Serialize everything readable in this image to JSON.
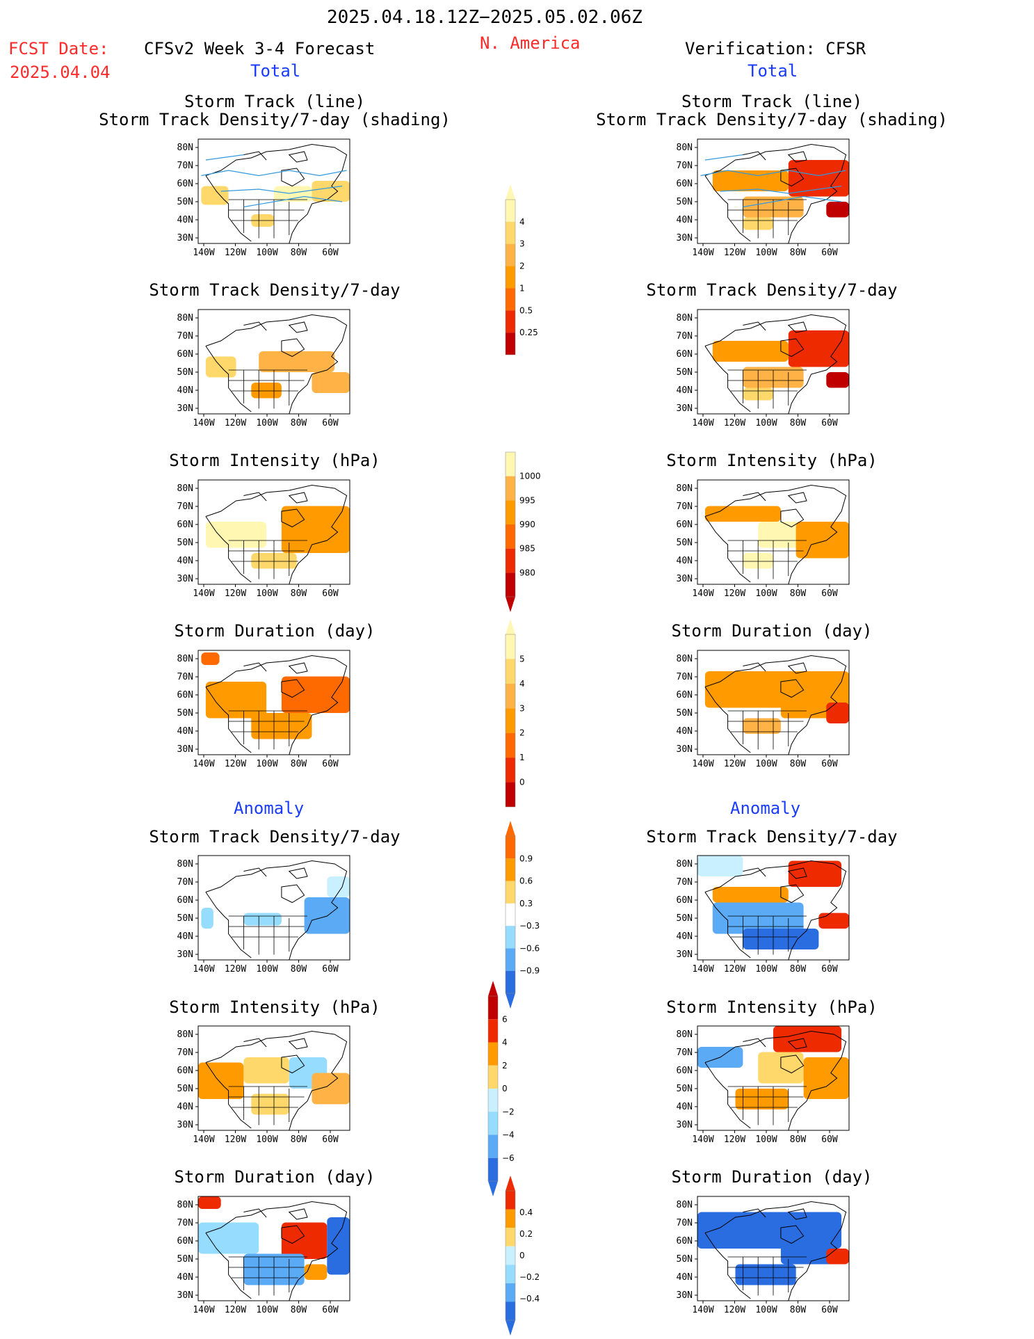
{
  "header": {
    "period": "2025.04.18.12Z−2025.05.02.06Z",
    "fcst_label": "FCST Date:",
    "fcst_date": "2025.04.04",
    "model": "CFSv2 Week 3-4 Forecast",
    "region": "N. America",
    "verification": "Verification: CFSR",
    "total_left": "Total",
    "total_right": "Total",
    "anomaly_left": "Anomaly",
    "anomaly_right": "Anomaly"
  },
  "axes": {
    "lat_labels": [
      "80N",
      "70N",
      "60N",
      "50N",
      "40N",
      "30N"
    ],
    "lon_labels": [
      "140W",
      "120W",
      "100W",
      "80W",
      "60W"
    ]
  },
  "panel_titles": {
    "track_line": "Storm Track (line)",
    "track_shading": "Storm Track Density/7-day (shading)",
    "density": "Storm Track Density/7-day",
    "intensity": "Storm Intensity (hPa)",
    "duration": "Storm Duration (day)"
  },
  "colors": {
    "yellow_light": "#fff7b2",
    "yellow": "#ffd86b",
    "orange_light": "#ffb347",
    "orange": "#ff9a00",
    "orange_dark": "#ff6a00",
    "red": "#ee2a00",
    "red_dark": "#c00000",
    "cyan_light": "#c8f0ff",
    "cyan": "#96dcff",
    "blue_light": "#5aaaf5",
    "blue": "#2a6de0",
    "blue_dark": "#1a4fc8",
    "track_line": "#3399dd",
    "title_blue": "#1a3cff",
    "title_red": "#ff2a2a"
  },
  "colorbars": [
    {
      "name": "density-total",
      "ticks": [
        "4",
        "3",
        "2",
        "1",
        "0.5",
        "0.25"
      ]
    },
    {
      "name": "intensity-total",
      "ticks": [
        "1000",
        "995",
        "990",
        "985",
        "980"
      ]
    },
    {
      "name": "duration-total",
      "ticks": [
        "5",
        "4",
        "3",
        "2",
        "1",
        "0"
      ]
    },
    {
      "name": "density-anomaly",
      "ticks": [
        "0.9",
        "0.6",
        "0.3",
        "−0.3",
        "−0.6",
        "−0.9"
      ]
    },
    {
      "name": "intensity-anomaly",
      "ticks": [
        "6",
        "4",
        "2",
        "0",
        "−2",
        "−4",
        "−6"
      ]
    },
    {
      "name": "duration-anomaly",
      "ticks": [
        "0.4",
        "0.2",
        "0",
        "−0.2",
        "−0.4"
      ]
    }
  ]
}
